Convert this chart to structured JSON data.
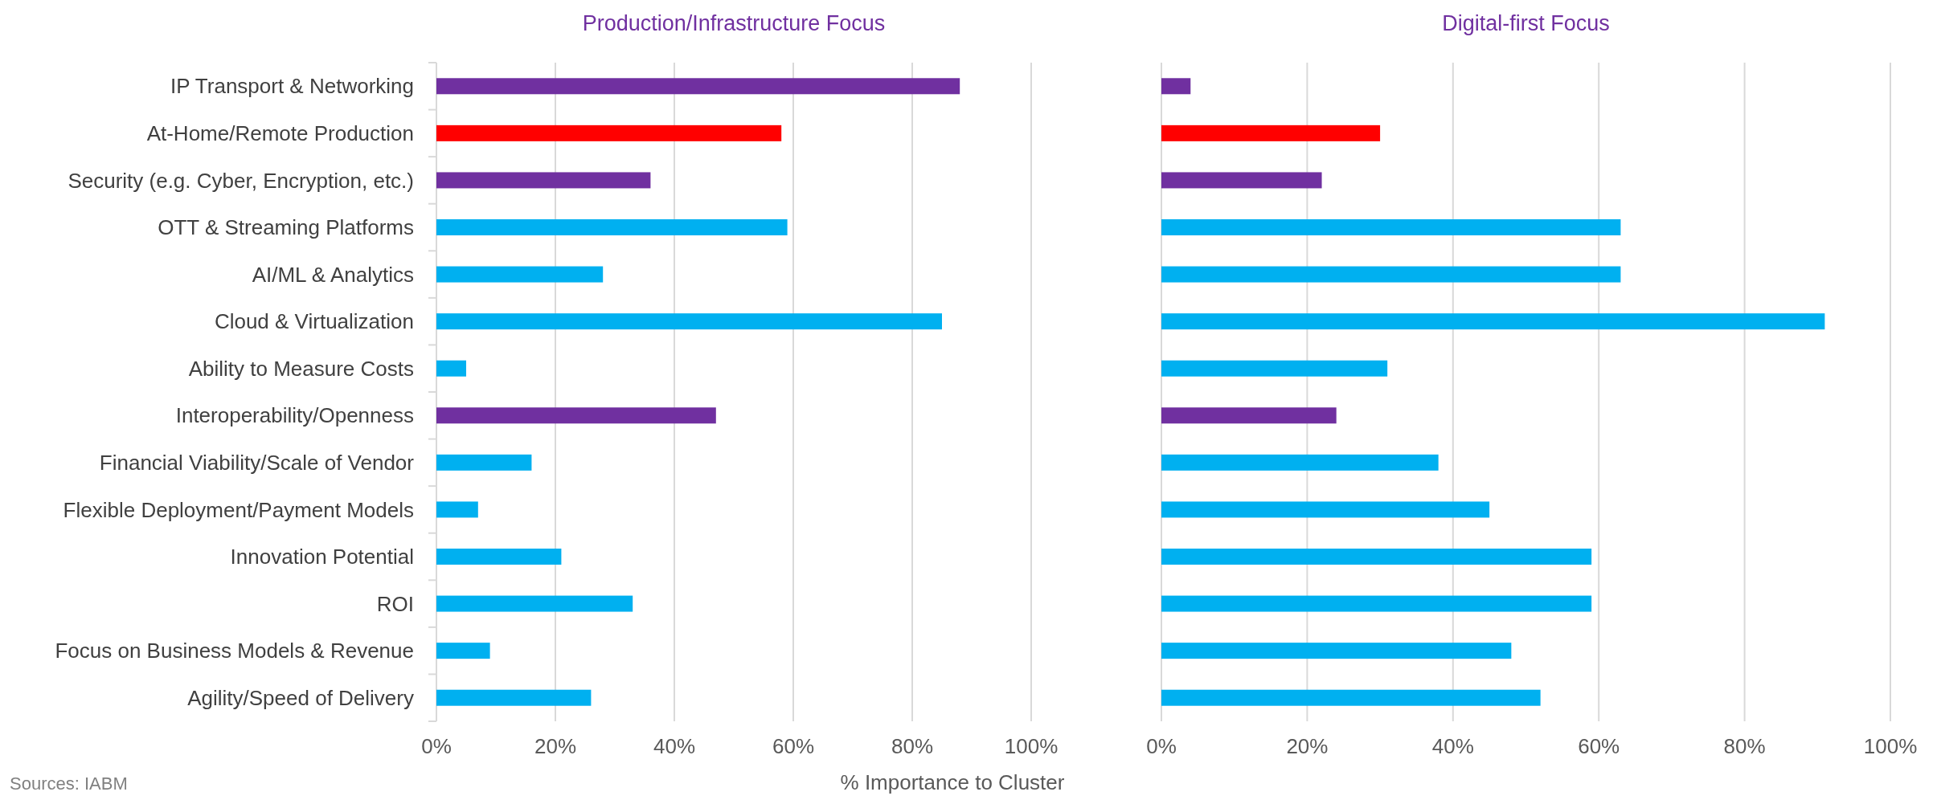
{
  "chart_data": [
    {
      "type": "bar",
      "orientation": "horizontal",
      "title": "Production/Infrastructure Focus",
      "xlabel": "% Importance to Cluster",
      "annotations": [
        "Sources: IABM"
      ],
      "categories": [
        "IP Transport & Networking",
        "At-Home/Remote Production",
        "Security (e.g. Cyber, Encryption, etc.)",
        "OTT & Streaming Platforms",
        "AI/ML & Analytics",
        "Cloud & Virtualization",
        "Ability to Measure Costs",
        "Interoperability/Openness",
        "Financial Viability/Scale of Vendor",
        "Flexible Deployment/Payment Models",
        "Innovation Potential",
        "ROI",
        "Focus on Business Models & Revenue",
        "Agility/Speed of Delivery"
      ],
      "values": [
        88,
        58,
        36,
        59,
        28,
        85,
        5,
        47,
        16,
        7,
        21,
        33,
        9,
        26
      ],
      "colors": [
        "#7030a0",
        "#ff0000",
        "#7030a0",
        "#00b0f0",
        "#00b0f0",
        "#00b0f0",
        "#00b0f0",
        "#7030a0",
        "#00b0f0",
        "#00b0f0",
        "#00b0f0",
        "#00b0f0",
        "#00b0f0",
        "#00b0f0"
      ],
      "xlim": [
        0,
        100
      ],
      "xticks": [
        {
          "value": 0,
          "label": "0%"
        },
        {
          "value": 20,
          "label": "20%"
        },
        {
          "value": 40,
          "label": "40%"
        },
        {
          "value": 60,
          "label": "60%"
        },
        {
          "value": 80,
          "label": "80%"
        },
        {
          "value": 100,
          "label": "100%"
        }
      ],
      "grid": "x"
    },
    {
      "type": "bar",
      "orientation": "horizontal",
      "title": "Digital-first Focus",
      "categories": [
        null,
        null,
        null,
        null,
        null,
        null,
        null,
        null,
        null,
        null,
        null,
        null,
        null,
        null
      ],
      "values": [
        4,
        30,
        22,
        63,
        63,
        91,
        31,
        24,
        38,
        45,
        59,
        59,
        48,
        52
      ],
      "colors": [
        "#7030a0",
        "#ff0000",
        "#7030a0",
        "#00b0f0",
        "#00b0f0",
        "#00b0f0",
        "#00b0f0",
        "#7030a0",
        "#00b0f0",
        "#00b0f0",
        "#00b0f0",
        "#00b0f0",
        "#00b0f0",
        "#00b0f0"
      ],
      "xlim": [
        0,
        100
      ],
      "xticks": [
        {
          "value": 0,
          "label": "0%"
        },
        {
          "value": 20,
          "label": "20%"
        },
        {
          "value": 40,
          "label": "40%"
        },
        {
          "value": 60,
          "label": "60%"
        },
        {
          "value": 80,
          "label": "80%"
        },
        {
          "value": 100,
          "label": "100%"
        }
      ],
      "grid": "x"
    }
  ]
}
